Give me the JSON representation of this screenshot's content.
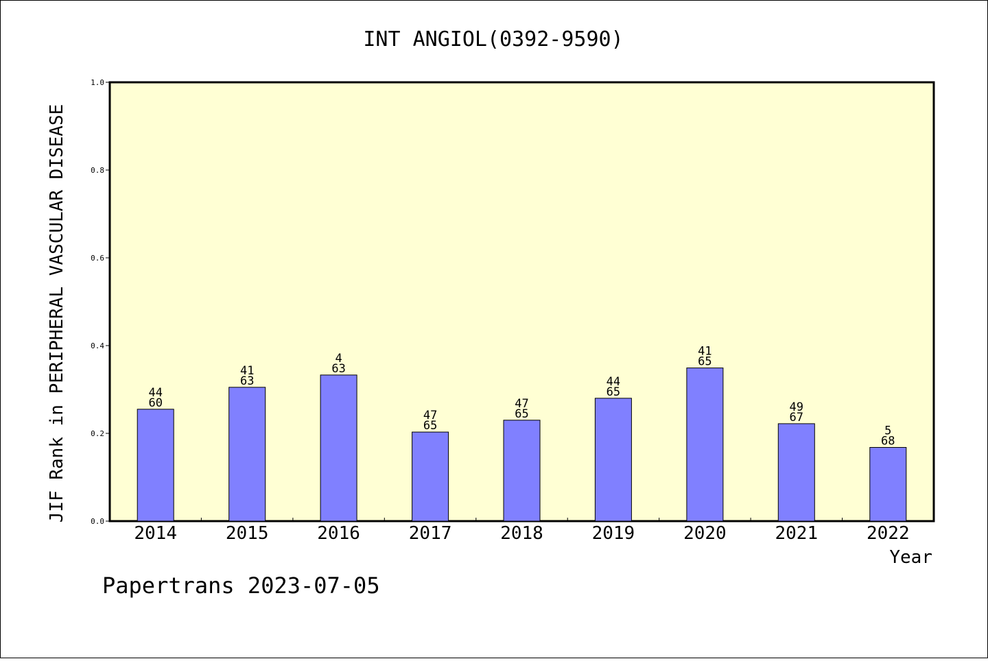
{
  "footer": "Papertrans 2023-07-05",
  "chart_data": {
    "type": "bar",
    "title": "INT ANGIOL(0392-9590)",
    "xlabel": "Year",
    "ylabel": "JIF Rank in PERIPHERAL VASCULAR DISEASE",
    "ylim": [
      0,
      1.0
    ],
    "yticks": [
      "0.0",
      "0.2",
      "0.4",
      "0.6",
      "0.8",
      "1.0"
    ],
    "categories": [
      "2014",
      "2015",
      "2016",
      "2017",
      "2018",
      "2019",
      "2020",
      "2021",
      "2022"
    ],
    "values": [
      0.255,
      0.305,
      0.333,
      0.203,
      0.23,
      0.28,
      0.349,
      0.222,
      0.168
    ],
    "rank": [
      "44",
      "41",
      "4",
      "47",
      "47",
      "44",
      "41",
      "49",
      "5"
    ],
    "total": [
      "60",
      "63",
      "63",
      "65",
      "65",
      "65",
      "65",
      "67",
      "68"
    ],
    "colors": {
      "plot_bg": "#ffffd4",
      "bar": "#8080ff",
      "bar_edge": "#000000"
    },
    "grid": false,
    "legend": "none"
  }
}
